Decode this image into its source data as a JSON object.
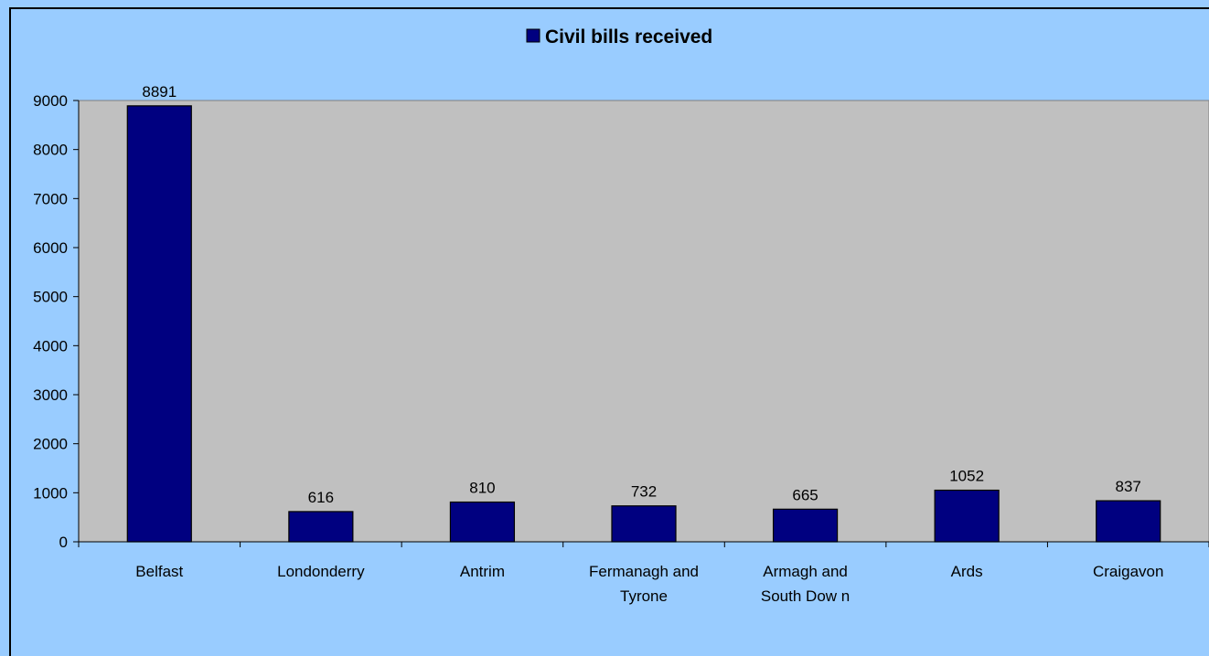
{
  "chart_data": {
    "type": "bar",
    "categories": [
      [
        "Belfast"
      ],
      [
        "Londonderry"
      ],
      [
        "Antrim"
      ],
      [
        "Fermanagh and",
        "Tyrone"
      ],
      [
        "Armagh and",
        "South Dow n"
      ],
      [
        "Ards"
      ],
      [
        "Craigavon"
      ]
    ],
    "series": [
      {
        "name": "Civil bills received",
        "values": [
          8891,
          616,
          810,
          732,
          665,
          1052,
          837
        ],
        "color": "#000080"
      }
    ],
    "ylim": [
      0,
      9000
    ],
    "yticks": [
      0,
      1000,
      2000,
      3000,
      4000,
      5000,
      6000,
      7000,
      8000,
      9000
    ],
    "data_labels": [
      "8891",
      "616",
      "810",
      "732",
      "665",
      "1052",
      "837"
    ],
    "legend_position": "top",
    "plot_area_color": "#c0c0c0",
    "background_color": "#99ccff",
    "grid": false
  }
}
